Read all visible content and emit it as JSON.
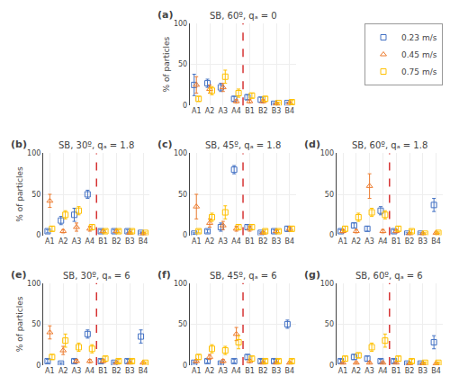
{
  "chart_data": [
    {
      "type": "scatter",
      "title": "SB, 60º, qₐ = 0",
      "ylabel": "% of particles",
      "categories": [
        "A1",
        "A2",
        "A3",
        "A4",
        "B1",
        "B2",
        "B3",
        "B4"
      ],
      "series": [
        {
          "name": "0.23 m/s",
          "color": "#4472C4",
          "marker": "square-open",
          "values": [
            25,
            27,
            22,
            8,
            10,
            7,
            2,
            3
          ],
          "errors": [
            13,
            5,
            5,
            3,
            3,
            3,
            1,
            1
          ]
        },
        {
          "name": "0.45 m/s",
          "color": "#ED7D31",
          "marker": "triangle-up-open",
          "values": [
            25,
            20,
            22,
            5,
            5,
            5,
            2,
            3
          ],
          "errors": [
            10,
            5,
            5,
            2,
            2,
            2,
            1,
            1
          ]
        },
        {
          "name": "0.75 m/s",
          "color": "#FFC000",
          "marker": "square-open",
          "values": [
            8,
            18,
            35,
            15,
            12,
            8,
            3,
            4
          ],
          "errors": [
            3,
            5,
            8,
            5,
            3,
            3,
            1,
            2
          ]
        }
      ],
      "ylim": [
        0,
        100
      ],
      "yticks": [
        0,
        50,
        100
      ],
      "grid": true,
      "annotations": [
        {
          "text": "(a)"
        },
        {
          "type": "vline",
          "after": "A4",
          "color": "#CC0000",
          "line_style": "dashed"
        }
      ]
    },
    {
      "type": "scatter",
      "title": "SB, 30º, qₐ = 1.8",
      "ylabel": "% of particles",
      "categories": [
        "A1",
        "A2",
        "A3",
        "A4",
        "B1",
        "B2",
        "B3",
        "B4"
      ],
      "series": [
        {
          "name": "0.23 m/s",
          "color": "#4472C4",
          "marker": "square-open",
          "values": [
            5,
            18,
            25,
            50,
            5,
            5,
            5,
            3
          ],
          "errors": [
            2,
            5,
            8,
            5,
            2,
            2,
            2,
            1
          ]
        },
        {
          "name": "0.45 m/s",
          "color": "#ED7D31",
          "marker": "triangle-up-open",
          "values": [
            42,
            5,
            10,
            8,
            5,
            5,
            3,
            2
          ],
          "errors": [
            8,
            2,
            5,
            3,
            2,
            2,
            1,
            1
          ]
        },
        {
          "name": "0.75 m/s",
          "color": "#FFC000",
          "marker": "square-open",
          "values": [
            8,
            25,
            30,
            10,
            5,
            5,
            5,
            3
          ],
          "errors": [
            3,
            5,
            5,
            3,
            2,
            2,
            2,
            1
          ]
        }
      ],
      "ylim": [
        0,
        100
      ],
      "yticks": [
        0,
        50,
        100
      ],
      "grid": true,
      "annotations": [
        {
          "text": "(b)"
        },
        {
          "type": "vline",
          "after": "A4",
          "color": "#CC0000",
          "line_style": "dashed"
        }
      ]
    },
    {
      "type": "scatter",
      "title": "SB, 45º, qₐ = 1.8",
      "categories": [
        "A1",
        "A2",
        "A3",
        "A4",
        "B1",
        "B2",
        "B3",
        "B4"
      ],
      "series": [
        {
          "name": "0.23 m/s",
          "color": "#4472C4",
          "marker": "square-open",
          "values": [
            2,
            5,
            10,
            80,
            10,
            3,
            5,
            8
          ],
          "errors": [
            1,
            2,
            5,
            5,
            3,
            1,
            2,
            3
          ]
        },
        {
          "name": "0.45 m/s",
          "color": "#ED7D31",
          "marker": "triangle-up-open",
          "values": [
            35,
            15,
            12,
            8,
            8,
            3,
            5,
            8
          ],
          "errors": [
            15,
            5,
            5,
            3,
            3,
            1,
            2,
            3
          ]
        },
        {
          "name": "0.75 m/s",
          "color": "#FFC000",
          "marker": "square-open",
          "values": [
            5,
            22,
            28,
            10,
            10,
            5,
            5,
            8
          ],
          "errors": [
            2,
            5,
            8,
            3,
            3,
            2,
            2,
            3
          ]
        }
      ],
      "ylim": [
        0,
        100
      ],
      "yticks": [
        0,
        50,
        100
      ],
      "grid": true,
      "annotations": [
        {
          "text": "(c)"
        },
        {
          "type": "vline",
          "after": "A4",
          "color": "#CC0000",
          "line_style": "dashed"
        }
      ]
    },
    {
      "type": "scatter",
      "title": "SB, 60º, qₐ = 1.8",
      "categories": [
        "A1",
        "A2",
        "A3",
        "A4",
        "B1",
        "B2",
        "B3",
        "B4"
      ],
      "series": [
        {
          "name": "0.23 m/s",
          "color": "#4472C4",
          "marker": "square-open",
          "values": [
            5,
            12,
            8,
            30,
            5,
            2,
            2,
            37
          ],
          "errors": [
            2,
            3,
            3,
            5,
            2,
            1,
            1,
            8
          ]
        },
        {
          "name": "0.45 m/s",
          "color": "#ED7D31",
          "marker": "triangle-up-open",
          "values": [
            5,
            5,
            60,
            5,
            5,
            2,
            2,
            3
          ],
          "errors": [
            2,
            2,
            15,
            2,
            2,
            1,
            1,
            1
          ]
        },
        {
          "name": "0.75 m/s",
          "color": "#FFC000",
          "marker": "square-open",
          "values": [
            8,
            22,
            28,
            25,
            8,
            5,
            2,
            3
          ],
          "errors": [
            3,
            5,
            5,
            5,
            3,
            2,
            1,
            1
          ]
        }
      ],
      "ylim": [
        0,
        100
      ],
      "yticks": [
        0,
        50,
        100
      ],
      "grid": true,
      "annotations": [
        {
          "text": "(d)"
        },
        {
          "type": "vline",
          "after": "A4",
          "color": "#CC0000",
          "line_style": "dashed"
        }
      ]
    },
    {
      "type": "scatter",
      "title": "SB, 30º, qₐ = 6",
      "ylabel": "% of particles",
      "categories": [
        "A1",
        "A2",
        "A3",
        "A4",
        "B1",
        "B2",
        "B3",
        "B4"
      ],
      "series": [
        {
          "name": "0.23 m/s",
          "color": "#4472C4",
          "marker": "square-open",
          "values": [
            5,
            2,
            5,
            38,
            5,
            3,
            5,
            35
          ],
          "errors": [
            2,
            1,
            2,
            5,
            2,
            1,
            2,
            8
          ]
        },
        {
          "name": "0.45 m/s",
          "color": "#ED7D31",
          "marker": "triangle-up-open",
          "values": [
            40,
            18,
            5,
            5,
            5,
            3,
            3,
            3
          ],
          "errors": [
            8,
            5,
            2,
            2,
            2,
            1,
            1,
            1
          ]
        },
        {
          "name": "0.75 m/s",
          "color": "#FFC000",
          "marker": "square-open",
          "values": [
            10,
            30,
            22,
            20,
            8,
            5,
            5,
            3
          ],
          "errors": [
            3,
            8,
            5,
            5,
            3,
            2,
            2,
            1
          ]
        }
      ],
      "ylim": [
        0,
        100
      ],
      "yticks": [
        0,
        50,
        100
      ],
      "grid": true,
      "annotations": [
        {
          "text": "(e)"
        },
        {
          "type": "vline",
          "after": "A4",
          "color": "#CC0000",
          "line_style": "dashed"
        }
      ]
    },
    {
      "type": "scatter",
      "title": "SB, 45º, qₐ = 6",
      "categories": [
        "A1",
        "A2",
        "A3",
        "A4",
        "B1",
        "B2",
        "B3",
        "B4"
      ],
      "series": [
        {
          "name": "0.23 m/s",
          "color": "#4472C4",
          "marker": "square-open",
          "values": [
            3,
            5,
            2,
            5,
            10,
            5,
            5,
            50
          ],
          "errors": [
            1,
            2,
            1,
            2,
            3,
            2,
            2,
            5
          ]
        },
        {
          "name": "0.45 m/s",
          "color": "#ED7D31",
          "marker": "triangle-up-open",
          "values": [
            5,
            10,
            5,
            38,
            5,
            3,
            3,
            3
          ],
          "errors": [
            2,
            3,
            2,
            8,
            2,
            1,
            1,
            1
          ]
        },
        {
          "name": "0.75 m/s",
          "color": "#FFC000",
          "marker": "square-open",
          "values": [
            10,
            20,
            18,
            28,
            8,
            5,
            5,
            5
          ],
          "errors": [
            3,
            5,
            5,
            8,
            3,
            2,
            2,
            2
          ]
        }
      ],
      "ylim": [
        0,
        100
      ],
      "yticks": [
        0,
        50,
        100
      ],
      "grid": true,
      "annotations": [
        {
          "text": "(f)"
        },
        {
          "type": "vline",
          "after": "A4",
          "color": "#CC0000",
          "line_style": "dashed"
        }
      ]
    },
    {
      "type": "scatter",
      "title": "SB, 60º, qₐ = 6",
      "categories": [
        "A1",
        "A2",
        "A3",
        "A4",
        "B1",
        "B2",
        "B3",
        "B4"
      ],
      "series": [
        {
          "name": "0.23 m/s",
          "color": "#4472C4",
          "marker": "square-open",
          "values": [
            5,
            10,
            8,
            5,
            5,
            2,
            2,
            28
          ],
          "errors": [
            2,
            3,
            3,
            2,
            2,
            1,
            1,
            8
          ]
        },
        {
          "name": "0.45 m/s",
          "color": "#ED7D31",
          "marker": "triangle-up-open",
          "values": [
            3,
            3,
            3,
            3,
            3,
            2,
            2,
            2
          ],
          "errors": [
            1,
            1,
            1,
            1,
            1,
            1,
            1,
            1
          ]
        },
        {
          "name": "0.75 m/s",
          "color": "#FFC000",
          "marker": "square-open",
          "values": [
            8,
            12,
            22,
            30,
            8,
            5,
            3,
            3
          ],
          "errors": [
            3,
            3,
            5,
            8,
            3,
            2,
            1,
            1
          ]
        }
      ],
      "ylim": [
        0,
        100
      ],
      "yticks": [
        0,
        50,
        100
      ],
      "grid": true,
      "legend": "upper right",
      "annotations": [
        {
          "text": "(g)"
        },
        {
          "type": "vline",
          "after": "A4",
          "color": "#CC0000",
          "line_style": "dashed"
        }
      ]
    }
  ]
}
